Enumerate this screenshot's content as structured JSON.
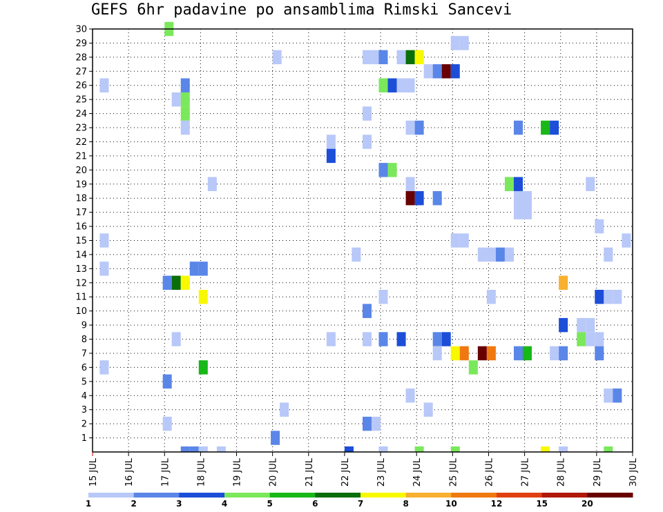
{
  "chart_data": {
    "type": "heatmap",
    "title": "GEFS 6hr padavine po ansamblima Rimski Sancevi",
    "y_ticks": [
      "1",
      "2",
      "3",
      "4",
      "5",
      "6",
      "7",
      "8",
      "9",
      "10",
      "11",
      "12",
      "13",
      "14",
      "15",
      "16",
      "17",
      "18",
      "19",
      "20",
      "21",
      "22",
      "23",
      "24",
      "25",
      "26",
      "27",
      "28",
      "29",
      "30"
    ],
    "x_ticks": [
      "15 JUL",
      "16 JUL",
      "17 JUL",
      "18 JUL",
      "19 JUL",
      "20 JUL",
      "21 JUL",
      "22 JUL",
      "23 JUL",
      "24 JUL",
      "25 JUL",
      "26 JUL",
      "27 JUL",
      "28 JUL",
      "29 JUL",
      "30 JUL"
    ],
    "grid": true,
    "colorbar": {
      "labels": [
        "1",
        "2",
        "3",
        "4",
        "5",
        "6",
        "7",
        "8",
        "10",
        "12",
        "15",
        "20"
      ],
      "colors": [
        "#b8c8f8",
        "#5a86e8",
        "#1c4ed8",
        "#7ae85a",
        "#18b818",
        "#0a6e0a",
        "#f8f800",
        "#f8b030",
        "#f07810",
        "#e04010",
        "#b01808",
        "#680000"
      ]
    },
    "cells": [
      {
        "y": 30,
        "x": 2.0,
        "c": 4
      },
      {
        "y": 29,
        "x": 9.95,
        "c": 1
      },
      {
        "y": 29,
        "x": 10.2,
        "c": 1
      },
      {
        "y": 28,
        "x": 5.0,
        "c": 1
      },
      {
        "y": 28,
        "x": 7.5,
        "c": 1
      },
      {
        "y": 28,
        "x": 7.75,
        "c": 1
      },
      {
        "y": 28,
        "x": 7.95,
        "c": 2
      },
      {
        "y": 28,
        "x": 8.45,
        "c": 1
      },
      {
        "y": 28,
        "x": 8.7,
        "c": 6
      },
      {
        "y": 28,
        "x": 8.95,
        "c": 7
      },
      {
        "y": 27,
        "x": 9.2,
        "c": 1
      },
      {
        "y": 27,
        "x": 9.45,
        "c": 2
      },
      {
        "y": 27,
        "x": 9.7,
        "c": 12
      },
      {
        "y": 27,
        "x": 9.95,
        "c": 3
      },
      {
        "y": 26,
        "x": 0.2,
        "c": 1
      },
      {
        "y": 26,
        "x": 2.45,
        "c": 2
      },
      {
        "y": 26,
        "x": 7.95,
        "c": 4
      },
      {
        "y": 26,
        "x": 8.2,
        "c": 3
      },
      {
        "y": 26,
        "x": 8.45,
        "c": 1
      },
      {
        "y": 26,
        "x": 8.7,
        "c": 1
      },
      {
        "y": 25,
        "x": 2.2,
        "c": 1
      },
      {
        "y": 25,
        "x": 2.45,
        "c": 4
      },
      {
        "y": 24,
        "x": 2.45,
        "c": 4
      },
      {
        "y": 24,
        "x": 7.5,
        "c": 1
      },
      {
        "y": 23,
        "x": 2.45,
        "c": 1
      },
      {
        "y": 23,
        "x": 8.7,
        "c": 1
      },
      {
        "y": 23,
        "x": 8.95,
        "c": 2
      },
      {
        "y": 23,
        "x": 11.7,
        "c": 2
      },
      {
        "y": 23,
        "x": 12.45,
        "c": 5
      },
      {
        "y": 23,
        "x": 12.7,
        "c": 3
      },
      {
        "y": 22,
        "x": 6.5,
        "c": 1
      },
      {
        "y": 22,
        "x": 7.5,
        "c": 1
      },
      {
        "y": 21,
        "x": 6.5,
        "c": 3
      },
      {
        "y": 20,
        "x": 7.95,
        "c": 2
      },
      {
        "y": 20,
        "x": 8.2,
        "c": 4
      },
      {
        "y": 19,
        "x": 3.2,
        "c": 1
      },
      {
        "y": 19,
        "x": 8.7,
        "c": 1
      },
      {
        "y": 19,
        "x": 11.45,
        "c": 4
      },
      {
        "y": 19,
        "x": 11.7,
        "c": 3
      },
      {
        "y": 19,
        "x": 13.7,
        "c": 1
      },
      {
        "y": 18,
        "x": 8.7,
        "c": 12
      },
      {
        "y": 18,
        "x": 8.95,
        "c": 3
      },
      {
        "y": 18,
        "x": 9.45,
        "c": 2
      },
      {
        "y": 18,
        "x": 11.7,
        "c": 1
      },
      {
        "y": 18,
        "x": 11.95,
        "c": 1
      },
      {
        "y": 17,
        "x": 11.7,
        "c": 1
      },
      {
        "y": 17,
        "x": 11.95,
        "c": 1
      },
      {
        "y": 16,
        "x": 13.95,
        "c": 1
      },
      {
        "y": 15,
        "x": 0.2,
        "c": 1
      },
      {
        "y": 15,
        "x": 9.95,
        "c": 1
      },
      {
        "y": 15,
        "x": 10.2,
        "c": 1
      },
      {
        "y": 15,
        "x": 14.7,
        "c": 1
      },
      {
        "y": 14,
        "x": 7.2,
        "c": 1
      },
      {
        "y": 14,
        "x": 10.7,
        "c": 1
      },
      {
        "y": 14,
        "x": 10.95,
        "c": 1
      },
      {
        "y": 14,
        "x": 11.2,
        "c": 2
      },
      {
        "y": 14,
        "x": 11.45,
        "c": 1
      },
      {
        "y": 14,
        "x": 14.2,
        "c": 1
      },
      {
        "y": 13,
        "x": 0.2,
        "c": 1
      },
      {
        "y": 13,
        "x": 2.7,
        "c": 2
      },
      {
        "y": 13,
        "x": 2.95,
        "c": 2
      },
      {
        "y": 12,
        "x": 1.95,
        "c": 2
      },
      {
        "y": 12,
        "x": 2.2,
        "c": 6
      },
      {
        "y": 12,
        "x": 2.45,
        "c": 7
      },
      {
        "y": 12,
        "x": 12.95,
        "c": 8
      },
      {
        "y": 11,
        "x": 2.95,
        "c": 7
      },
      {
        "y": 11,
        "x": 7.95,
        "c": 1
      },
      {
        "y": 11,
        "x": 10.95,
        "c": 1
      },
      {
        "y": 11,
        "x": 13.95,
        "c": 3
      },
      {
        "y": 11,
        "x": 14.2,
        "c": 1
      },
      {
        "y": 11,
        "x": 14.45,
        "c": 1
      },
      {
        "y": 10,
        "x": 7.5,
        "c": 2
      },
      {
        "y": 9,
        "x": 12.95,
        "c": 3
      },
      {
        "y": 9,
        "x": 13.45,
        "c": 1
      },
      {
        "y": 9,
        "x": 13.7,
        "c": 1
      },
      {
        "y": 8,
        "x": 2.2,
        "c": 1
      },
      {
        "y": 8,
        "x": 6.5,
        "c": 1
      },
      {
        "y": 8,
        "x": 7.5,
        "c": 1
      },
      {
        "y": 8,
        "x": 7.95,
        "c": 2
      },
      {
        "y": 8,
        "x": 8.45,
        "c": 3
      },
      {
        "y": 8,
        "x": 9.45,
        "c": 2
      },
      {
        "y": 8,
        "x": 9.7,
        "c": 3
      },
      {
        "y": 8,
        "x": 13.45,
        "c": 4
      },
      {
        "y": 8,
        "x": 13.7,
        "c": 1
      },
      {
        "y": 8,
        "x": 13.95,
        "c": 1
      },
      {
        "y": 7,
        "x": 9.45,
        "c": 1
      },
      {
        "y": 7,
        "x": 9.95,
        "c": 7
      },
      {
        "y": 7,
        "x": 10.2,
        "c": 9
      },
      {
        "y": 7,
        "x": 10.7,
        "c": 12
      },
      {
        "y": 7,
        "x": 10.95,
        "c": 9
      },
      {
        "y": 7,
        "x": 11.7,
        "c": 2
      },
      {
        "y": 7,
        "x": 11.95,
        "c": 5
      },
      {
        "y": 7,
        "x": 12.7,
        "c": 1
      },
      {
        "y": 7,
        "x": 12.95,
        "c": 2
      },
      {
        "y": 7,
        "x": 13.95,
        "c": 2
      },
      {
        "y": 6,
        "x": 0.2,
        "c": 1
      },
      {
        "y": 6,
        "x": 2.95,
        "c": 5
      },
      {
        "y": 6,
        "x": 10.45,
        "c": 4
      },
      {
        "y": 5,
        "x": 1.95,
        "c": 2
      },
      {
        "y": 4,
        "x": 8.7,
        "c": 1
      },
      {
        "y": 4,
        "x": 14.2,
        "c": 1
      },
      {
        "y": 4,
        "x": 14.45,
        "c": 2
      },
      {
        "y": 3,
        "x": 5.2,
        "c": 1
      },
      {
        "y": 3,
        "x": 9.2,
        "c": 1
      },
      {
        "y": 2,
        "x": 1.95,
        "c": 1
      },
      {
        "y": 2,
        "x": 7.5,
        "c": 2
      },
      {
        "y": 2,
        "x": 7.75,
        "c": 1
      },
      {
        "y": 1,
        "x": 4.95,
        "c": 2
      },
      {
        "y": 0,
        "x": 2.45,
        "c": 2
      },
      {
        "y": 0,
        "x": 2.7,
        "c": 2
      },
      {
        "y": 0,
        "x": 2.95,
        "c": 1
      },
      {
        "y": 0,
        "x": 3.45,
        "c": 1
      },
      {
        "y": 0,
        "x": 7.0,
        "c": 3
      },
      {
        "y": 0,
        "x": 7.95,
        "c": 1
      },
      {
        "y": 0,
        "x": 8.95,
        "c": 4
      },
      {
        "y": 0,
        "x": 9.95,
        "c": 4
      },
      {
        "y": 0,
        "x": 12.45,
        "c": 7
      },
      {
        "y": 0,
        "x": 12.95,
        "c": 1
      },
      {
        "y": 0,
        "x": 14.2,
        "c": 4
      }
    ]
  }
}
